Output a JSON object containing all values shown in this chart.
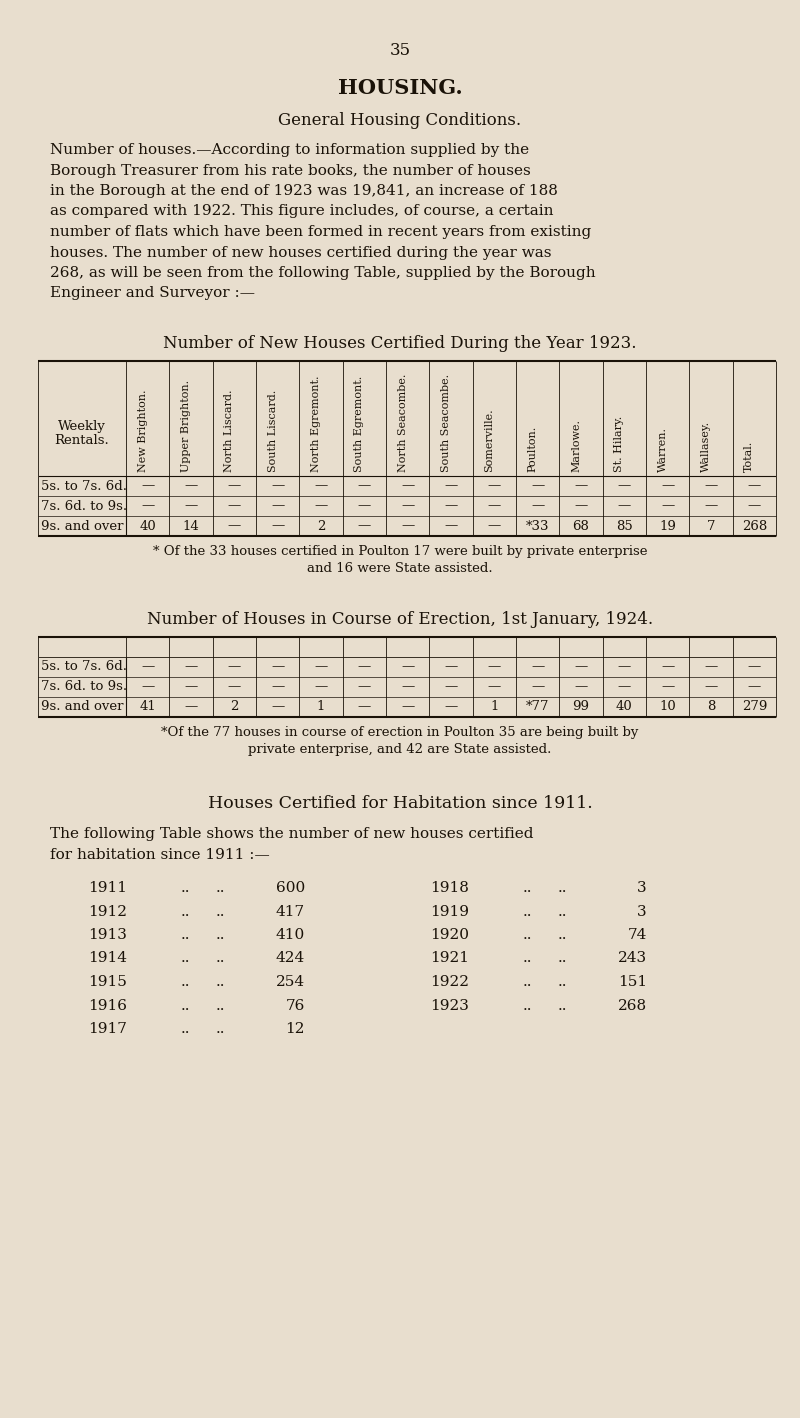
{
  "bg_color": "#e8dece",
  "text_color": "#1a1208",
  "page_number": "35",
  "title": "HOUSING.",
  "subtitle": "General Housing Conditions.",
  "para_lines": [
    "Number of houses.—According to information supplied by the",
    "Borough Treasurer from his rate books, the number of houses",
    "in the Borough at the end of 1923 was 19,841, an increase of 188",
    "as compared with 1922. This figure includes, of course, a certain",
    "number of flats which have been formed in recent years from existing",
    "houses. The number of new houses certified during the year was",
    "268, as will be seen from the following Table, supplied by the Borough",
    "Engineer and Surveyor :—"
  ],
  "table1_title": "Number of New Houses Certified During the Year 1923.",
  "table1_col_headers": [
    "New Brighton.",
    "Upper Brighton.",
    "North Liscard.",
    "South Liscard.",
    "North Egremont.",
    "South Egremont.",
    "North Seacombe.",
    "South Seacombe.",
    "Somerville.",
    "Poulton.",
    "Marlowe.",
    "St. Hilary.",
    "Warren.",
    "Wallasey.",
    "Total."
  ],
  "table1_row_label_header": "Weekly\nRentals.",
  "table1_row_labels": [
    "5s. to 7s. 6d.",
    "7s. 6d. to 9s.",
    "9s. and over"
  ],
  "table1_data": [
    [
      "—",
      "—",
      "—",
      "—",
      "—",
      "—",
      "—",
      "—",
      "—",
      "—",
      "—",
      "—",
      "—",
      "—",
      "—"
    ],
    [
      "—",
      "—",
      "—",
      "—",
      "—",
      "—",
      "—",
      "—",
      "—",
      "—",
      "—",
      "—",
      "—",
      "—",
      "—"
    ],
    [
      "40",
      "14",
      "—",
      "—",
      "2",
      "—",
      "—",
      "—",
      "—",
      "*33",
      "68",
      "85",
      "19",
      "7",
      "268"
    ]
  ],
  "table1_footnote_lines": [
    "* Of the 33 houses certified in Poulton 17 were built by private enterprise",
    "and 16 were State assisted."
  ],
  "table2_title": "Number of Houses in Course of Erection, 1st January, 1924.",
  "table2_row_labels": [
    "5s. to 7s. 6d.",
    "7s. 6d. to 9s.",
    "9s. and over"
  ],
  "table2_data": [
    [
      "—",
      "—",
      "—",
      "—",
      "—",
      "—",
      "—",
      "—",
      "—",
      "—",
      "—",
      "—",
      "—",
      "—",
      "—"
    ],
    [
      "—",
      "—",
      "—",
      "—",
      "—",
      "—",
      "—",
      "—",
      "—",
      "—",
      "—",
      "—",
      "—",
      "—",
      "—"
    ],
    [
      "41",
      "—",
      "2",
      "—",
      "1",
      "—",
      "—",
      "—",
      "1",
      "*77",
      "99",
      "40",
      "10",
      "8",
      "279"
    ]
  ],
  "table2_footnote_lines": [
    "*Of the 77 houses in course of erection in Poulton 35 are being built by",
    "private enterprise, and 42 are State assisted."
  ],
  "section3_title": "Houses Certified for Habitation since 1911.",
  "section3_intro_lines": [
    "The following Table shows the number of new houses certified",
    "for habitation since 1911 :—"
  ],
  "hab_years_left": [
    "1911",
    "1912",
    "1913",
    "1914",
    "1915",
    "1916",
    "1917"
  ],
  "hab_vals_left": [
    "600",
    "417",
    "410",
    "424",
    "254",
    "76",
    "12"
  ],
  "hab_years_right": [
    "1918",
    "1919",
    "1920",
    "1921",
    "1922",
    "1923"
  ],
  "hab_vals_right": [
    "3",
    "3",
    "74",
    "243",
    "151",
    "268"
  ]
}
